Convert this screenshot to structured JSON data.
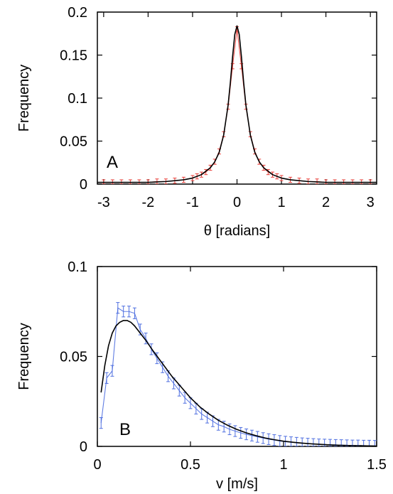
{
  "chart_data": [
    {
      "panel": "A",
      "type": "line",
      "xlabel": "θ [radians]",
      "ylabel": "Frequency",
      "xlim": [
        -3.1416,
        3.1416
      ],
      "ylim": [
        0,
        0.2
      ],
      "xticks": [
        "-3",
        "-2",
        "-1",
        "0",
        "1",
        "2",
        "3"
      ],
      "yticks": [
        "0",
        "0.05",
        "0.1",
        "0.15",
        "0.2"
      ],
      "grid": false,
      "series": [
        {
          "kind": "data-with-errorbars",
          "color": "#e8403a",
          "x": [
            -3.0,
            -2.8,
            -2.6,
            -2.4,
            -2.2,
            -2.0,
            -1.8,
            -1.6,
            -1.4,
            -1.2,
            -1.0,
            -0.9,
            -0.8,
            -0.7,
            -0.6,
            -0.5,
            -0.4,
            -0.3,
            -0.2,
            -0.1,
            0.0,
            0.1,
            0.2,
            0.3,
            0.4,
            0.5,
            0.6,
            0.7,
            0.8,
            0.9,
            1.0,
            1.2,
            1.4,
            1.6,
            1.8,
            2.0,
            2.2,
            2.4,
            2.6,
            2.8,
            3.0
          ],
          "y": [
            0.002,
            0.002,
            0.002,
            0.002,
            0.002,
            0.002,
            0.003,
            0.003,
            0.004,
            0.005,
            0.007,
            0.009,
            0.011,
            0.014,
            0.019,
            0.026,
            0.038,
            0.058,
            0.09,
            0.137,
            0.18,
            0.137,
            0.09,
            0.058,
            0.038,
            0.026,
            0.019,
            0.014,
            0.011,
            0.009,
            0.007,
            0.005,
            0.004,
            0.003,
            0.003,
            0.002,
            0.002,
            0.002,
            0.002,
            0.002,
            0.002
          ],
          "err": 0.003
        },
        {
          "kind": "fit",
          "color": "#000000",
          "x": [
            -3.1416,
            -2.8,
            -2.4,
            -2.0,
            -1.6,
            -1.2,
            -1.0,
            -0.8,
            -0.6,
            -0.5,
            -0.4,
            -0.3,
            -0.2,
            -0.15,
            -0.1,
            -0.05,
            0.0,
            0.05,
            0.1,
            0.15,
            0.2,
            0.3,
            0.4,
            0.5,
            0.6,
            0.8,
            1.0,
            1.2,
            1.6,
            2.0,
            2.4,
            2.8,
            3.1416
          ],
          "y": [
            0.002,
            0.002,
            0.002,
            0.002,
            0.003,
            0.005,
            0.007,
            0.011,
            0.019,
            0.026,
            0.037,
            0.057,
            0.092,
            0.118,
            0.148,
            0.174,
            0.184,
            0.174,
            0.148,
            0.118,
            0.092,
            0.057,
            0.037,
            0.026,
            0.019,
            0.011,
            0.007,
            0.005,
            0.003,
            0.002,
            0.002,
            0.002,
            0.002
          ]
        }
      ]
    },
    {
      "panel": "B",
      "type": "line",
      "xlabel": "v [m/s]",
      "ylabel": "Frequency",
      "xlim": [
        0,
        1.5
      ],
      "ylim": [
        0,
        0.1
      ],
      "xticks": [
        "0",
        "0.5",
        "1",
        "1.5"
      ],
      "yticks": [
        "0",
        "0.05",
        "0.1"
      ],
      "grid": false,
      "series": [
        {
          "kind": "data-with-errorbars",
          "color": "#4f6fe0",
          "x": [
            0.02,
            0.05,
            0.08,
            0.11,
            0.14,
            0.17,
            0.2,
            0.23,
            0.26,
            0.29,
            0.32,
            0.35,
            0.38,
            0.41,
            0.44,
            0.47,
            0.5,
            0.53,
            0.56,
            0.59,
            0.62,
            0.65,
            0.68,
            0.71,
            0.74,
            0.77,
            0.8,
            0.83,
            0.86,
            0.89,
            0.92,
            0.95,
            0.98,
            1.01,
            1.04,
            1.07,
            1.1,
            1.13,
            1.16,
            1.19,
            1.22,
            1.25,
            1.28,
            1.31,
            1.34,
            1.37,
            1.4,
            1.43,
            1.46,
            1.49
          ],
          "y": [
            0.013,
            0.038,
            0.042,
            0.077,
            0.075,
            0.075,
            0.074,
            0.065,
            0.06,
            0.054,
            0.049,
            0.044,
            0.039,
            0.035,
            0.031,
            0.027,
            0.024,
            0.021,
            0.018,
            0.016,
            0.014,
            0.012,
            0.011,
            0.0095,
            0.0085,
            0.0075,
            0.0067,
            0.006,
            0.0053,
            0.0046,
            0.004,
            0.0035,
            0.003,
            0.0026,
            0.0023,
            0.002,
            0.0017,
            0.0015,
            0.0013,
            0.0011,
            0.001,
            0.0009,
            0.0008,
            0.0007,
            0.0006,
            0.0005,
            0.0005,
            0.0004,
            0.0004,
            0.0003
          ],
          "err": 0.003
        },
        {
          "kind": "fit",
          "color": "#000000",
          "x": [
            0.02,
            0.04,
            0.06,
            0.08,
            0.1,
            0.12,
            0.14,
            0.16,
            0.18,
            0.2,
            0.23,
            0.26,
            0.3,
            0.35,
            0.4,
            0.45,
            0.5,
            0.55,
            0.6,
            0.65,
            0.7,
            0.75,
            0.8,
            0.85,
            0.9,
            0.95,
            1.0,
            1.05,
            1.1,
            1.15,
            1.2,
            1.25,
            1.3,
            1.35,
            1.4,
            1.45,
            1.5
          ],
          "y": [
            0.03,
            0.045,
            0.056,
            0.063,
            0.067,
            0.069,
            0.07,
            0.07,
            0.069,
            0.067,
            0.063,
            0.059,
            0.053,
            0.046,
            0.039,
            0.033,
            0.027,
            0.022,
            0.018,
            0.0145,
            0.0117,
            0.0094,
            0.0075,
            0.006,
            0.0047,
            0.0037,
            0.0029,
            0.0023,
            0.0018,
            0.0014,
            0.0011,
            0.0008,
            0.0006,
            0.0005,
            0.0004,
            0.0003,
            0.0002
          ]
        }
      ]
    }
  ]
}
